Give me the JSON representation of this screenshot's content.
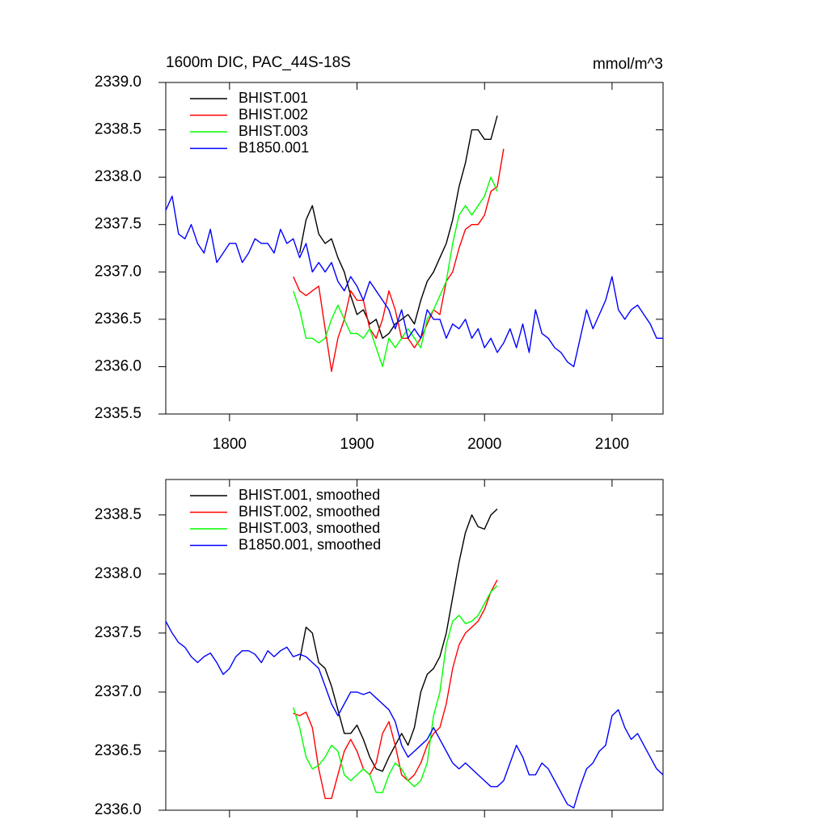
{
  "chart_data": [
    {
      "type": "line",
      "title": "1600m DIC, PAC_44S-18S",
      "units": "mmol/m^3",
      "x": [
        1750,
        1755,
        1760,
        1765,
        1770,
        1775,
        1780,
        1785,
        1790,
        1795,
        1800,
        1805,
        1810,
        1815,
        1820,
        1825,
        1830,
        1835,
        1840,
        1845,
        1850,
        1855,
        1860,
        1865,
        1870,
        1875,
        1880,
        1885,
        1890,
        1895,
        1900,
        1905,
        1910,
        1915,
        1920,
        1925,
        1930,
        1935,
        1940,
        1945,
        1950,
        1955,
        1960,
        1965,
        1970,
        1975,
        1980,
        1985,
        1990,
        1995,
        2000,
        2005,
        2010,
        2015,
        2020,
        2025,
        2030,
        2035,
        2040,
        2045,
        2050,
        2055,
        2060,
        2065,
        2070,
        2075,
        2080,
        2085,
        2090,
        2095,
        2100,
        2105,
        2110,
        2115,
        2120,
        2125,
        2130,
        2135,
        2140
      ],
      "xlim": [
        1750,
        2140
      ],
      "xticks": [
        1800,
        1900,
        2000,
        2100
      ],
      "ylim": [
        2335.5,
        2339.0
      ],
      "yticks": [
        2335.5,
        {
          "value": 2336.0,
          "label": "2336.0"
        },
        2336.5,
        {
          "value": 2337.0,
          "label": "2337.0"
        },
        2337.5,
        {
          "value": 2338.0,
          "label": "2338.0"
        },
        2338.5,
        {
          "value": 2339.0,
          "label": "2339.0"
        }
      ],
      "series": [
        {
          "name": "BHIST.001",
          "color": "#000000",
          "values": [
            null,
            null,
            null,
            null,
            null,
            null,
            null,
            null,
            null,
            null,
            null,
            null,
            null,
            null,
            null,
            null,
            null,
            null,
            null,
            null,
            null,
            2337.2,
            2337.55,
            2337.7,
            2337.4,
            2337.3,
            2337.35,
            2337.15,
            2337.0,
            2336.75,
            2336.55,
            2336.6,
            2336.45,
            2336.5,
            2336.3,
            2336.35,
            2336.45,
            2336.5,
            2336.55,
            2336.45,
            2336.7,
            2336.9,
            2337.0,
            2337.15,
            2337.3,
            2337.55,
            2337.9,
            2338.15,
            2338.5,
            2338.5,
            2338.4,
            2338.4,
            2338.65,
            null,
            null,
            null,
            null,
            null,
            null,
            null,
            null,
            null,
            null,
            null,
            null,
            null,
            null,
            null,
            null,
            null,
            null,
            null,
            null,
            null,
            null,
            null,
            null,
            null,
            null
          ]
        },
        {
          "name": "BHIST.002",
          "color": "#ff0000",
          "values": [
            null,
            null,
            null,
            null,
            null,
            null,
            null,
            null,
            null,
            null,
            null,
            null,
            null,
            null,
            null,
            null,
            null,
            null,
            null,
            null,
            2336.95,
            2336.8,
            2336.75,
            2336.8,
            2336.85,
            2336.4,
            2335.95,
            2336.3,
            2336.5,
            2336.8,
            2336.7,
            2336.7,
            2336.4,
            2336.3,
            2336.5,
            2336.8,
            2336.6,
            2336.3,
            2336.3,
            2336.2,
            2336.3,
            2336.45,
            2336.6,
            2336.55,
            2336.9,
            2337.0,
            2337.25,
            2337.45,
            2337.5,
            2337.5,
            2337.6,
            2337.85,
            2337.9,
            2338.3,
            null,
            null,
            null,
            null,
            null,
            null,
            null,
            null,
            null,
            null,
            null,
            null,
            null,
            null,
            null,
            null,
            null,
            null,
            null,
            null,
            null,
            null,
            null,
            null,
            null
          ]
        },
        {
          "name": "BHIST.003",
          "color": "#00ff00",
          "values": [
            null,
            null,
            null,
            null,
            null,
            null,
            null,
            null,
            null,
            null,
            null,
            null,
            null,
            null,
            null,
            null,
            null,
            null,
            null,
            null,
            2336.8,
            2336.6,
            2336.3,
            2336.3,
            2336.25,
            2336.3,
            2336.5,
            2336.65,
            2336.5,
            2336.35,
            2336.35,
            2336.3,
            2336.4,
            2336.2,
            2336.0,
            2336.3,
            2336.2,
            2336.3,
            2336.4,
            2336.3,
            2336.2,
            2336.5,
            2336.6,
            2336.75,
            2336.9,
            2337.3,
            2337.6,
            2337.7,
            2337.6,
            2337.7,
            2337.8,
            2338.0,
            2337.85,
            null,
            null,
            null,
            null,
            null,
            null,
            null,
            null,
            null,
            null,
            null,
            null,
            null,
            null,
            null,
            null,
            null,
            null,
            null,
            null,
            null,
            null,
            null,
            null,
            null,
            null
          ]
        },
        {
          "name": "B1850.001",
          "color": "#0000ff",
          "values": [
            2337.65,
            2337.8,
            2337.4,
            2337.35,
            2337.5,
            2337.3,
            2337.2,
            2337.45,
            2337.1,
            2337.2,
            2337.3,
            2337.3,
            2337.1,
            2337.2,
            2337.35,
            2337.3,
            2337.3,
            2337.2,
            2337.45,
            2337.3,
            2337.35,
            2337.15,
            2337.3,
            2337.0,
            2337.1,
            2337.0,
            2337.1,
            2336.9,
            2336.8,
            2336.95,
            2336.85,
            2336.7,
            2336.9,
            2336.8,
            2336.7,
            2336.6,
            2336.4,
            2336.6,
            2336.3,
            2336.4,
            2336.3,
            2336.6,
            2336.5,
            2336.5,
            2336.3,
            2336.45,
            2336.4,
            2336.5,
            2336.3,
            2336.4,
            2336.2,
            2336.3,
            2336.15,
            2336.25,
            2336.4,
            2336.2,
            2336.45,
            2336.15,
            2336.6,
            2336.35,
            2336.3,
            2336.2,
            2336.15,
            2336.05,
            2336.0,
            2336.3,
            2336.6,
            2336.4,
            2336.55,
            2336.7,
            2336.95,
            2336.6,
            2336.5,
            2336.6,
            2336.65,
            2336.55,
            2336.45,
            2336.3,
            2336.3
          ]
        }
      ]
    },
    {
      "type": "line",
      "x": [
        1750,
        1755,
        1760,
        1765,
        1770,
        1775,
        1780,
        1785,
        1790,
        1795,
        1800,
        1805,
        1810,
        1815,
        1820,
        1825,
        1830,
        1835,
        1840,
        1845,
        1850,
        1855,
        1860,
        1865,
        1870,
        1875,
        1880,
        1885,
        1890,
        1895,
        1900,
        1905,
        1910,
        1915,
        1920,
        1925,
        1930,
        1935,
        1940,
        1945,
        1950,
        1955,
        1960,
        1965,
        1970,
        1975,
        1980,
        1985,
        1990,
        1995,
        2000,
        2005,
        2010,
        2015,
        2020,
        2025,
        2030,
        2035,
        2040,
        2045,
        2050,
        2055,
        2060,
        2065,
        2070,
        2075,
        2080,
        2085,
        2090,
        2095,
        2100,
        2105,
        2110,
        2115,
        2120,
        2125,
        2130,
        2135,
        2140
      ],
      "xlim": [
        1750,
        2140
      ],
      "xticks": [
        1800,
        1900,
        2000,
        2100
      ],
      "xtick_labels": false,
      "ylim": [
        2336.0,
        2338.8
      ],
      "yticks": [
        {
          "value": 2336.0,
          "label": "2336.0"
        },
        2336.5,
        {
          "value": 2337.0,
          "label": "2337.0"
        },
        2337.5,
        {
          "value": 2338.0,
          "label": "2338.0"
        },
        2338.5
      ],
      "series": [
        {
          "name": "BHIST.001, smoothed",
          "color": "#000000",
          "values": [
            null,
            null,
            null,
            null,
            null,
            null,
            null,
            null,
            null,
            null,
            null,
            null,
            null,
            null,
            null,
            null,
            null,
            null,
            null,
            null,
            null,
            2337.27,
            2337.55,
            2337.5,
            2337.25,
            2337.2,
            2337.05,
            2336.85,
            2336.65,
            2336.65,
            2336.72,
            2336.6,
            2336.45,
            2336.35,
            2336.33,
            2336.45,
            2336.55,
            2336.65,
            2336.55,
            2336.7,
            2337.0,
            2337.15,
            2337.2,
            2337.3,
            2337.5,
            2337.8,
            2338.1,
            2338.35,
            2338.5,
            2338.4,
            2338.38,
            2338.5,
            2338.55,
            null,
            null,
            null,
            null,
            null,
            null,
            null,
            null,
            null,
            null,
            null,
            null,
            null,
            null,
            null,
            null,
            null,
            null,
            null,
            null,
            null,
            null,
            null,
            null,
            null,
            null
          ]
        },
        {
          "name": "BHIST.002, smoothed",
          "color": "#ff0000",
          "values": [
            null,
            null,
            null,
            null,
            null,
            null,
            null,
            null,
            null,
            null,
            null,
            null,
            null,
            null,
            null,
            null,
            null,
            null,
            null,
            null,
            2336.82,
            2336.8,
            2336.83,
            2336.7,
            2336.35,
            2336.1,
            2336.1,
            2336.3,
            2336.5,
            2336.6,
            2336.5,
            2336.35,
            2336.3,
            2336.4,
            2336.65,
            2336.75,
            2336.55,
            2336.3,
            2336.25,
            2336.3,
            2336.4,
            2336.55,
            2336.65,
            2336.7,
            2336.9,
            2337.2,
            2337.4,
            2337.5,
            2337.55,
            2337.6,
            2337.7,
            2337.85,
            2337.95,
            null,
            null,
            null,
            null,
            null,
            null,
            null,
            null,
            null,
            null,
            null,
            null,
            null,
            null,
            null,
            null,
            null,
            null,
            null,
            null,
            null,
            null,
            null,
            null,
            null,
            null
          ]
        },
        {
          "name": "BHIST.003, smoothed",
          "color": "#00ff00",
          "values": [
            null,
            null,
            null,
            null,
            null,
            null,
            null,
            null,
            null,
            null,
            null,
            null,
            null,
            null,
            null,
            null,
            null,
            null,
            null,
            null,
            2336.87,
            2336.7,
            2336.45,
            2336.35,
            2336.38,
            2336.45,
            2336.55,
            2336.5,
            2336.3,
            2336.25,
            2336.3,
            2336.35,
            2336.3,
            2336.15,
            2336.15,
            2336.3,
            2336.4,
            2336.35,
            2336.25,
            2336.2,
            2336.25,
            2336.4,
            2336.8,
            2337.0,
            2337.4,
            2337.6,
            2337.65,
            2337.58,
            2337.6,
            2337.65,
            2337.75,
            2337.85,
            2337.9,
            null,
            null,
            null,
            null,
            null,
            null,
            null,
            null,
            null,
            null,
            null,
            null,
            null,
            null,
            null,
            null,
            null,
            null,
            null,
            null,
            null,
            null,
            null,
            null,
            null,
            null
          ]
        },
        {
          "name": "B1850.001, smoothed",
          "color": "#0000ff",
          "values": [
            2337.6,
            2337.5,
            2337.42,
            2337.38,
            2337.3,
            2337.25,
            2337.3,
            2337.33,
            2337.25,
            2337.15,
            2337.2,
            2337.3,
            2337.35,
            2337.35,
            2337.32,
            2337.25,
            2337.35,
            2337.3,
            2337.35,
            2337.38,
            2337.3,
            2337.32,
            2337.3,
            2337.25,
            2337.2,
            2337.05,
            2336.9,
            2336.8,
            2336.9,
            2337.0,
            2337.0,
            2336.98,
            2337.0,
            2336.95,
            2336.9,
            2336.85,
            2336.75,
            2336.55,
            2336.45,
            2336.5,
            2336.55,
            2336.6,
            2336.7,
            2336.6,
            2336.5,
            2336.4,
            2336.35,
            2336.4,
            2336.35,
            2336.3,
            2336.25,
            2336.2,
            2336.2,
            2336.25,
            2336.4,
            2336.55,
            2336.45,
            2336.3,
            2336.3,
            2336.4,
            2336.35,
            2336.25,
            2336.15,
            2336.05,
            2336.02,
            2336.2,
            2336.35,
            2336.4,
            2336.5,
            2336.55,
            2336.8,
            2336.85,
            2336.7,
            2336.6,
            2336.65,
            2336.55,
            2336.45,
            2336.35,
            2336.3
          ]
        }
      ]
    }
  ]
}
